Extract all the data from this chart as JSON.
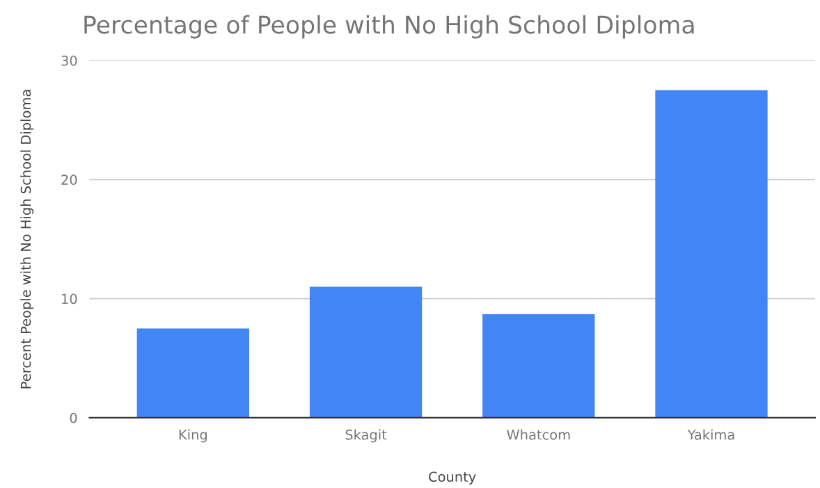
{
  "chart_data": {
    "type": "bar",
    "title": "Percentage of People with No High School Diploma",
    "xlabel": "County",
    "ylabel": "Percent People with No High School Diploma",
    "categories": [
      "King",
      "Skagit",
      "Whatcom",
      "Yakima"
    ],
    "values": [
      7.5,
      11.0,
      8.7,
      27.5
    ],
    "color": "#4285f4",
    "ylim": [
      0,
      30
    ],
    "yticks": [
      0,
      10,
      20,
      30
    ],
    "grid": "y",
    "legend": false
  }
}
